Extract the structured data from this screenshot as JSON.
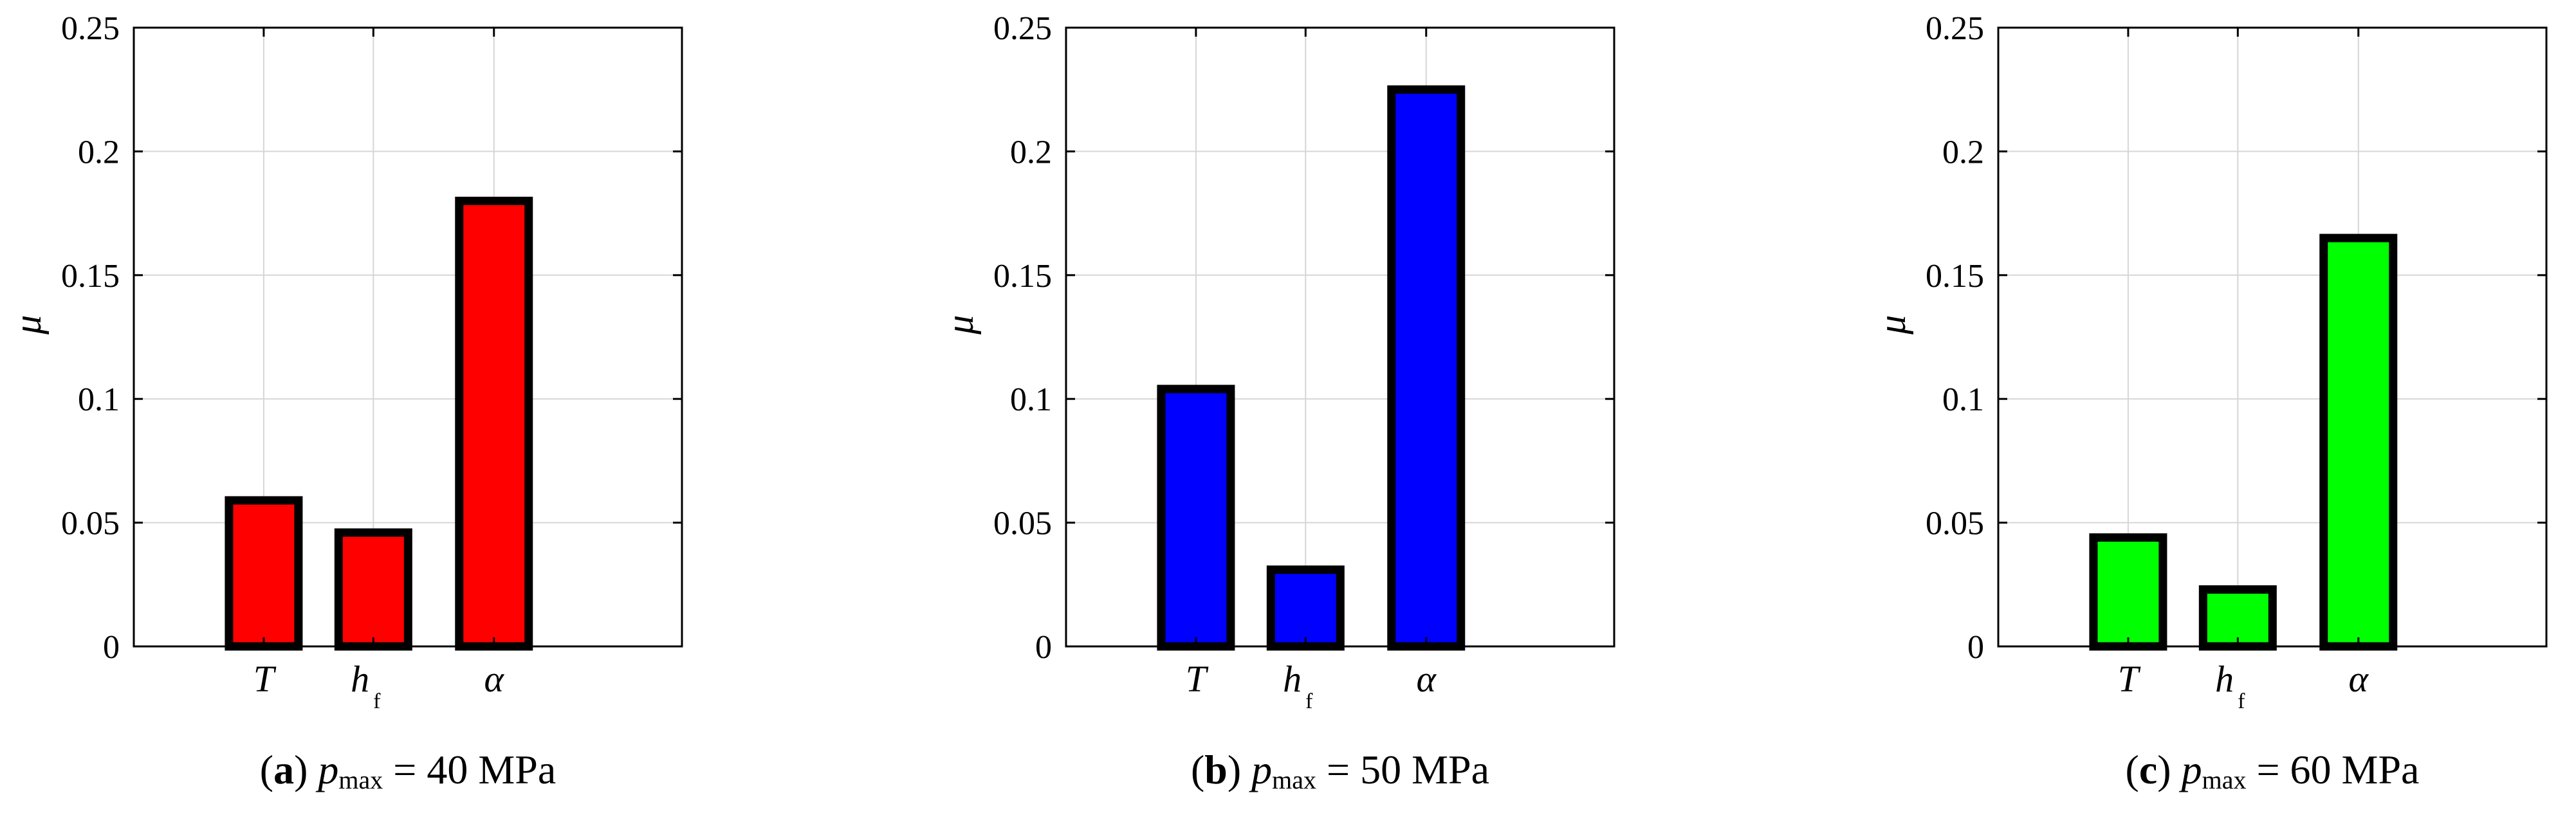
{
  "chart_data": [
    {
      "type": "bar",
      "panel_label": "a",
      "caption_var": "p",
      "caption_var_sub": "max",
      "caption_value": "40 MPa",
      "ylabel": "μ",
      "categories": [
        {
          "main": "T",
          "sub": ""
        },
        {
          "main": "h",
          "sub": "f"
        },
        {
          "main": "α",
          "sub": ""
        }
      ],
      "values": [
        0.059,
        0.046,
        0.18
      ],
      "color": "#ff0000",
      "ylim": [
        0,
        0.25
      ],
      "yticks": [
        0,
        0.05,
        0.1,
        0.15,
        0.2,
        0.25
      ],
      "ytick_labels": [
        "0",
        "0.05",
        "0.1",
        "0.15",
        "0.2",
        "0.25"
      ],
      "grid": true
    },
    {
      "type": "bar",
      "panel_label": "b",
      "caption_var": "p",
      "caption_var_sub": "max",
      "caption_value": "50 MPa",
      "ylabel": "μ",
      "categories": [
        {
          "main": "T",
          "sub": ""
        },
        {
          "main": "h",
          "sub": "f"
        },
        {
          "main": "α",
          "sub": ""
        }
      ],
      "values": [
        0.104,
        0.031,
        0.225
      ],
      "color": "#0000ff",
      "ylim": [
        0,
        0.25
      ],
      "yticks": [
        0,
        0.05,
        0.1,
        0.15,
        0.2,
        0.25
      ],
      "ytick_labels": [
        "0",
        "0.05",
        "0.1",
        "0.15",
        "0.2",
        "0.25"
      ],
      "grid": true
    },
    {
      "type": "bar",
      "panel_label": "c",
      "caption_var": "p",
      "caption_var_sub": "max",
      "caption_value": "60 MPa",
      "ylabel": "μ",
      "categories": [
        {
          "main": "T",
          "sub": ""
        },
        {
          "main": "h",
          "sub": "f"
        },
        {
          "main": "α",
          "sub": ""
        }
      ],
      "values": [
        0.044,
        0.023,
        0.165
      ],
      "color": "#00ff00",
      "ylim": [
        0,
        0.25
      ],
      "yticks": [
        0,
        0.05,
        0.1,
        0.15,
        0.2,
        0.25
      ],
      "ytick_labels": [
        "0",
        "0.05",
        "0.1",
        "0.15",
        "0.2",
        "0.25"
      ],
      "grid": true
    }
  ]
}
